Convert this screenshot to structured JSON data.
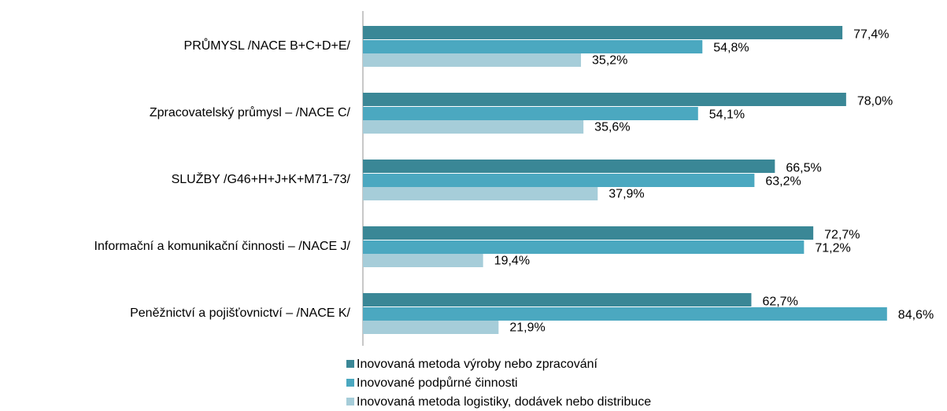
{
  "chart_data": {
    "type": "barh",
    "categories": [
      "PRŮMYSL  /NACE B+C+D+E/",
      "Zpracovatelský průmysl – /NACE C/",
      "SLUŽBY /G46+H+J+K+M71-73/",
      "Informační a komunikační činnosti – /NACE J/",
      "Peněžnictví a pojišťovnictví – /NACE K/"
    ],
    "series": [
      {
        "name": "Inovovaná metoda výroby nebo zpracování",
        "color": "#3a8796",
        "values": [
          77.4,
          78.0,
          66.5,
          72.7,
          62.7
        ],
        "value_labels": [
          "77,4%",
          "78,0%",
          "66,5%",
          "72,7%",
          "62,7%"
        ]
      },
      {
        "name": "Inovované podpůrné činnosti",
        "color": "#4ba8c0",
        "values": [
          54.8,
          54.1,
          63.2,
          71.2,
          84.6
        ],
        "value_labels": [
          "54,8%",
          "54,1%",
          "63,2%",
          "71,2%",
          "84,6%"
        ]
      },
      {
        "name": "Inovovaná metoda logistiky, dodávek nebo distribuce",
        "color": "#a6cdd9",
        "values": [
          35.2,
          35.6,
          37.9,
          19.4,
          21.9
        ],
        "value_labels": [
          "35,2%",
          "35,6%",
          "37,9%",
          "19,4%",
          "21,9%"
        ]
      }
    ],
    "legend": "bottom"
  }
}
